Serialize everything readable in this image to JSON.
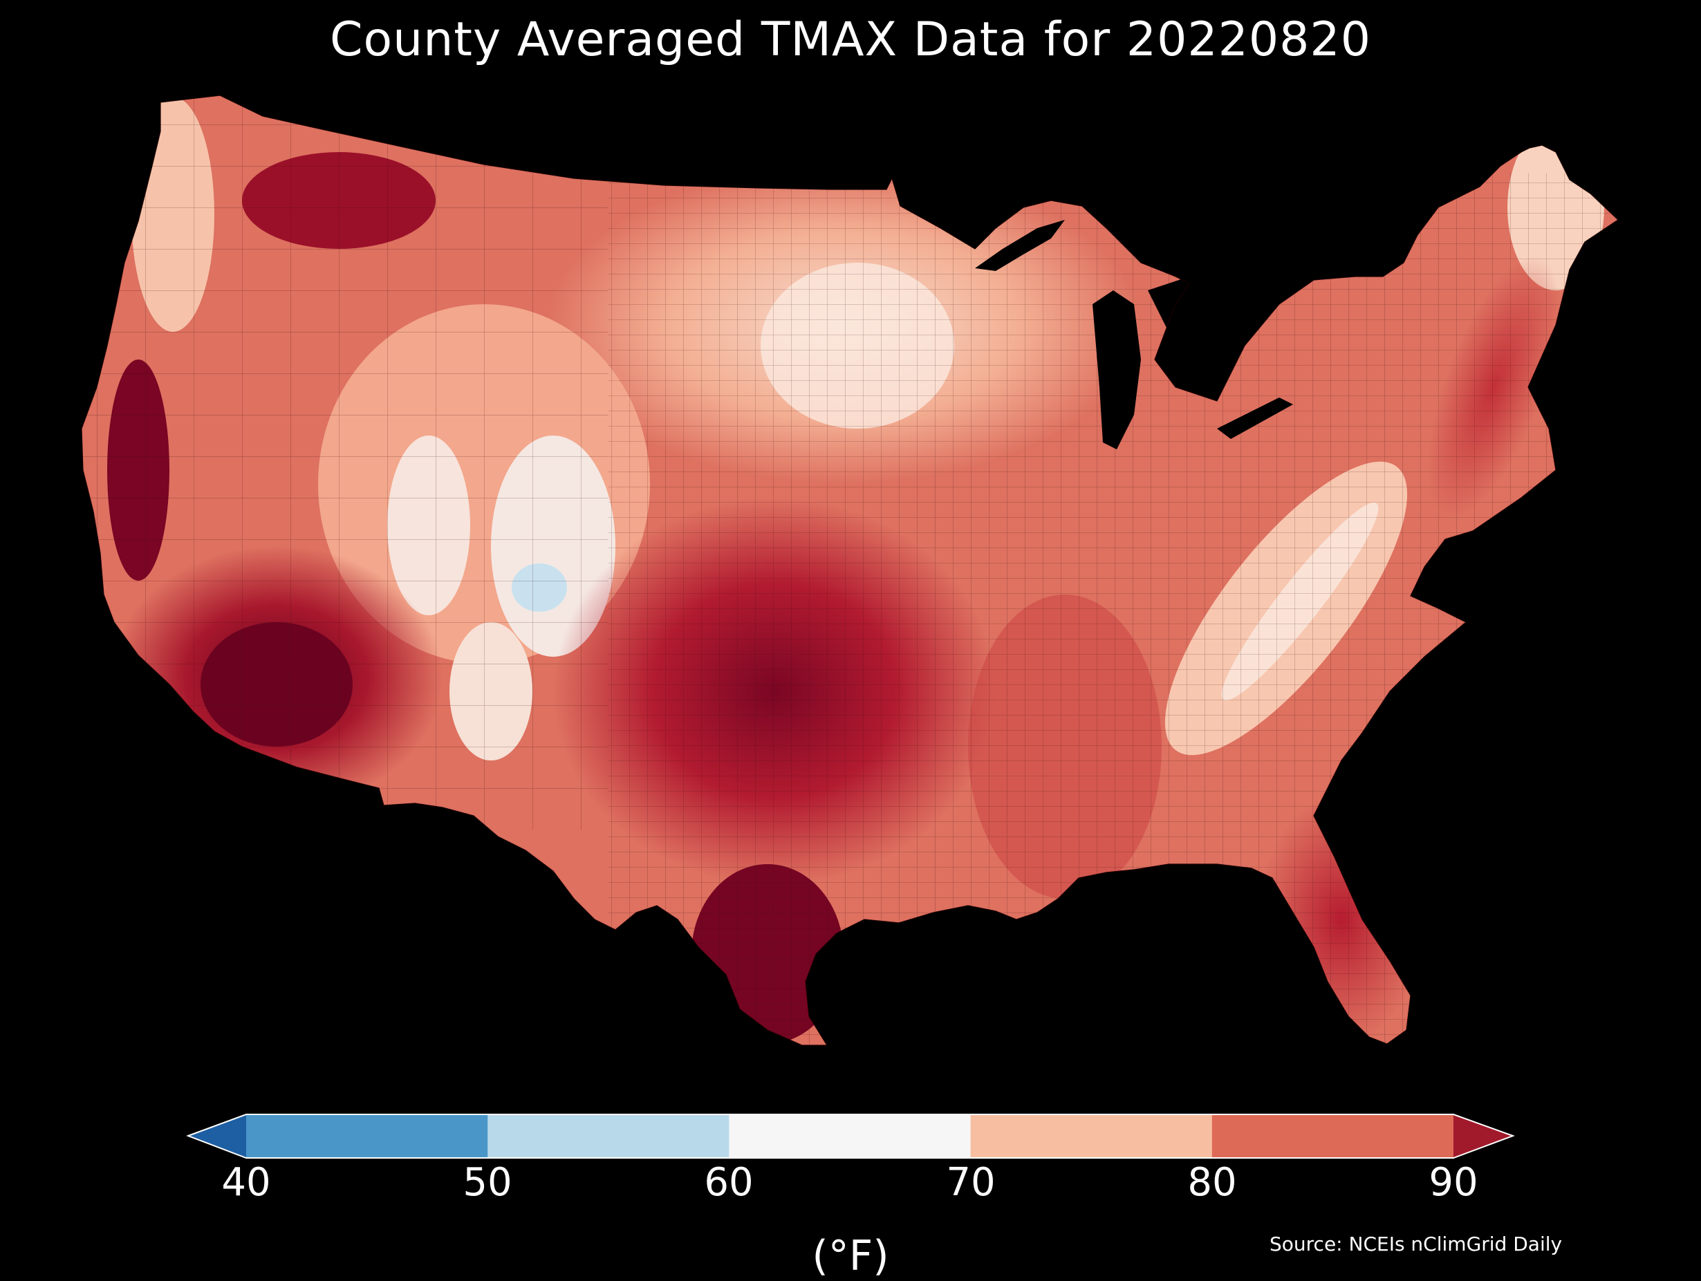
{
  "title": "County Averaged TMAX Data for 20220820",
  "colorbar": {
    "ticks": [
      "40",
      "50",
      "60",
      "70",
      "80",
      "90"
    ],
    "unit": "(°F)",
    "bins": [
      {
        "from": 40,
        "to": 50,
        "color": "#4a96c8"
      },
      {
        "from": 50,
        "to": 60,
        "color": "#b8d9ea"
      },
      {
        "from": 60,
        "to": 70,
        "color": "#f6f6f6"
      },
      {
        "from": 70,
        "to": 80,
        "color": "#f7bea2"
      },
      {
        "from": 80,
        "to": 90,
        "color": "#dd6a57"
      }
    ],
    "under_color": "#1e5fa3",
    "over_color": "#a11a2b"
  },
  "source": "Source: NCEIs nClimGrid Daily",
  "map_colors": {
    "background": "#000000",
    "base": "#de7160",
    "cool": "#f8d0bc",
    "very_cool": "#f6eee9",
    "coolest": "#c9e1ef",
    "hot": "#c62a36",
    "hottest": "#6b0320"
  }
}
